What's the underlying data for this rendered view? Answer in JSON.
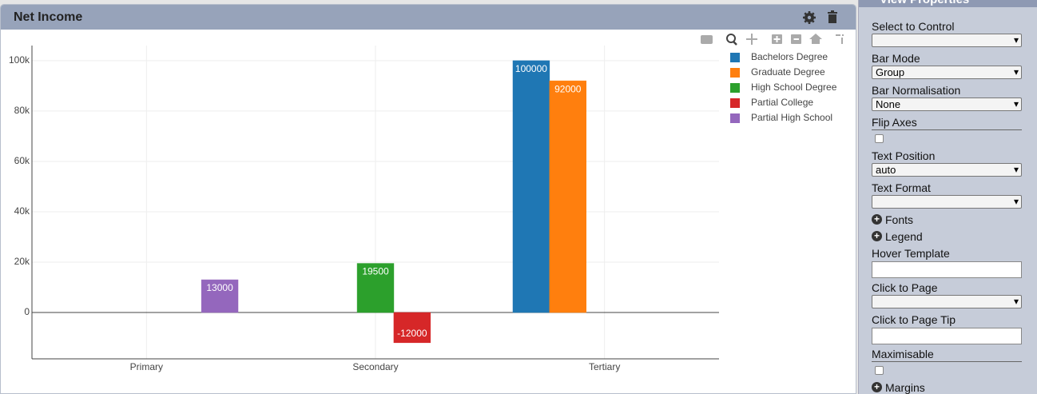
{
  "widget": {
    "title": "Net Income"
  },
  "chart_data": {
    "type": "bar",
    "categories": [
      "Primary",
      "Secondary",
      "Tertiary"
    ],
    "series": [
      {
        "name": "Bachelors Degree",
        "color": "#1f77b4",
        "values": [
          0,
          0,
          100000
        ]
      },
      {
        "name": "Graduate Degree",
        "color": "#ff7f0e",
        "values": [
          0,
          0,
          92000
        ]
      },
      {
        "name": "High School Degree",
        "color": "#2ca02c",
        "values": [
          0,
          19500,
          0
        ]
      },
      {
        "name": "Partial College",
        "color": "#d62728",
        "values": [
          0,
          -12000,
          0
        ]
      },
      {
        "name": "Partial High School",
        "color": "#9467bd",
        "values": [
          13000,
          0,
          0
        ]
      }
    ],
    "ylim": [
      -18400,
      106000
    ],
    "yticks": [
      {
        "value": 0,
        "label": "0"
      },
      {
        "value": 20000,
        "label": "20k"
      },
      {
        "value": 40000,
        "label": "40k"
      },
      {
        "value": 60000,
        "label": "60k"
      },
      {
        "value": 80000,
        "label": "80k"
      },
      {
        "value": 100000,
        "label": "100k"
      }
    ],
    "grid": true,
    "legend": "right"
  },
  "view_properties": {
    "title": "View Properties",
    "fields": [
      {
        "label": "Select to Control",
        "kind": "select"
      },
      {
        "label": "Bar Mode",
        "kind": "select",
        "value": "Group"
      },
      {
        "label": "Bar Normalisation",
        "kind": "select",
        "value": "None"
      },
      {
        "label": "Flip Axes",
        "kind": "checkbox"
      },
      {
        "label": "Text Position",
        "kind": "select",
        "value": "auto"
      },
      {
        "label": "Text Format",
        "kind": "select"
      },
      {
        "label": "Fonts",
        "kind": "expander"
      },
      {
        "label": "Legend",
        "kind": "expander"
      },
      {
        "label": "Hover Template",
        "kind": "input"
      },
      {
        "label": "Click to Page",
        "kind": "select"
      },
      {
        "label": "Click to Page Tip",
        "kind": "input"
      },
      {
        "label": "Maximisable",
        "kind": "checkbox"
      },
      {
        "label": "Margins",
        "kind": "expander"
      }
    ]
  }
}
